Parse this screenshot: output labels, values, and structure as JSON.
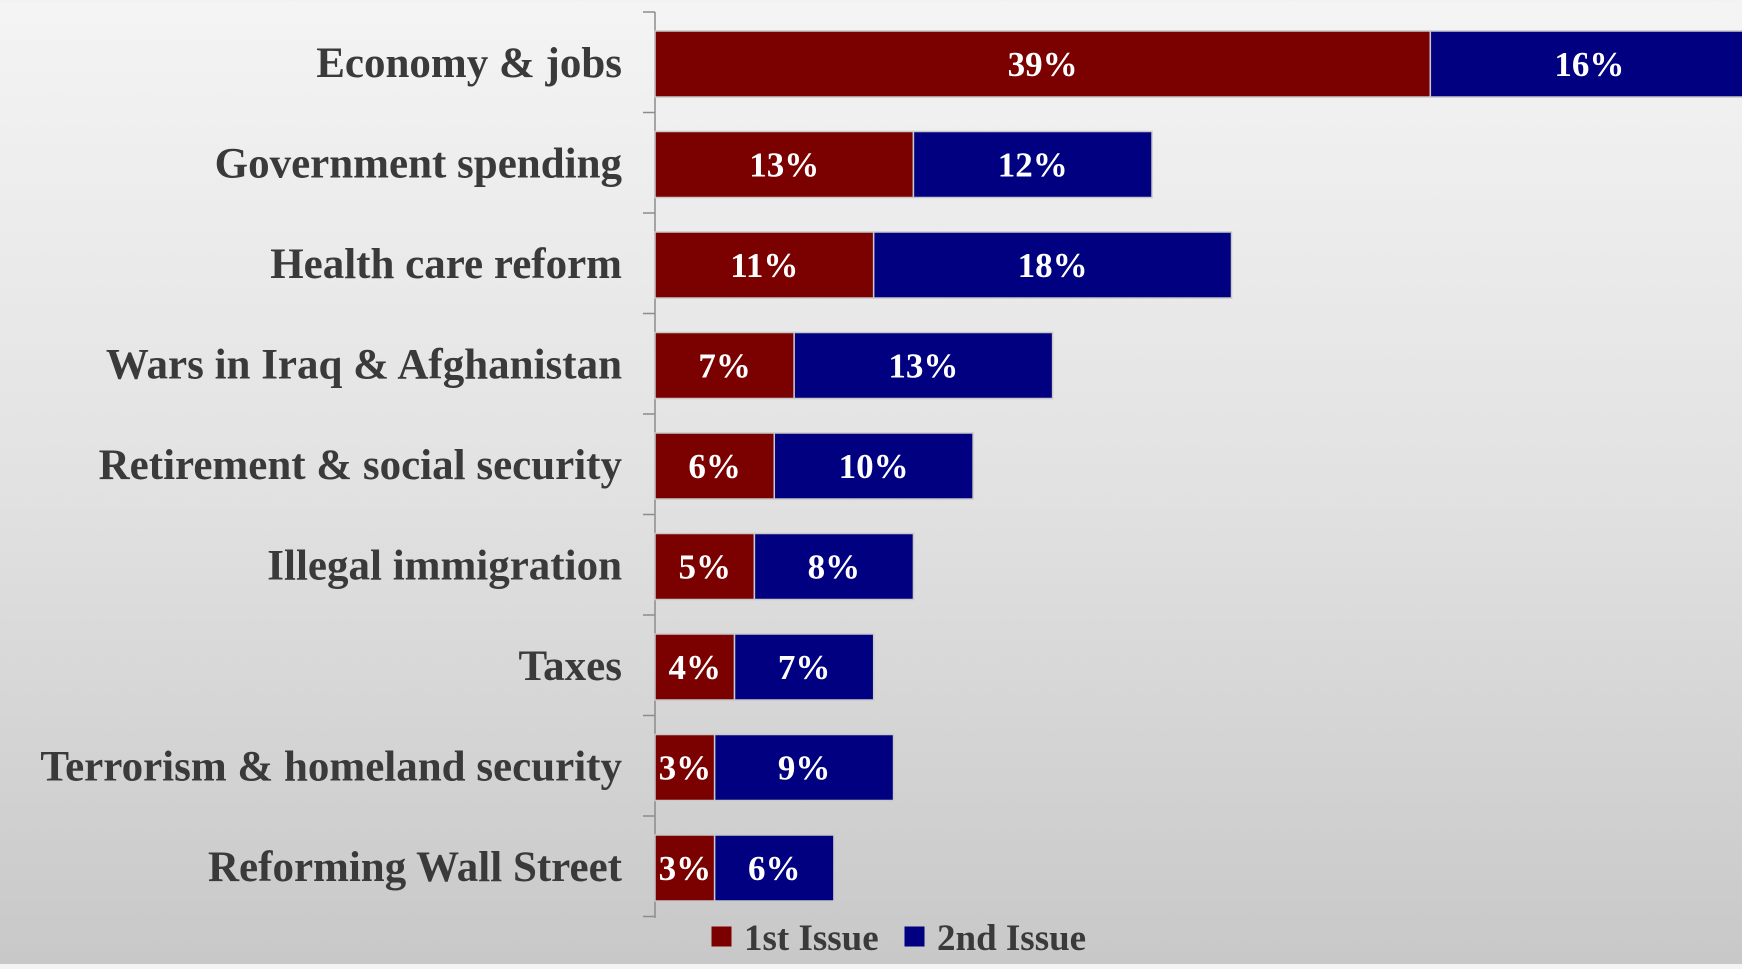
{
  "chart_data": {
    "type": "bar",
    "orientation": "horizontal",
    "stacked": true,
    "categories": [
      "Economy & jobs",
      "Government spending",
      "Health care reform",
      "Wars in Iraq & Afghanistan",
      "Retirement & social security",
      "Illegal immigration",
      "Taxes",
      "Terrorism & homeland security",
      "Reforming Wall Street"
    ],
    "series": [
      {
        "name": "1st Issue",
        "color": "#7b0000",
        "values": [
          39,
          13,
          11,
          7,
          6,
          5,
          4,
          3,
          3
        ],
        "labels": [
          "39%",
          "13%",
          "11%",
          "7%",
          "6%",
          "5%",
          "4%",
          "3%",
          "3%"
        ]
      },
      {
        "name": "2nd Issue",
        "color": "#000080",
        "values": [
          16,
          12,
          18,
          13,
          10,
          8,
          7,
          9,
          6
        ],
        "labels": [
          "16%",
          "12%",
          "18%",
          "13%",
          "10%",
          "8%",
          "7%",
          "9%",
          "6%"
        ]
      }
    ],
    "legend": "bottom",
    "grid": false,
    "title": "",
    "xlabel": "",
    "ylabel": ""
  }
}
